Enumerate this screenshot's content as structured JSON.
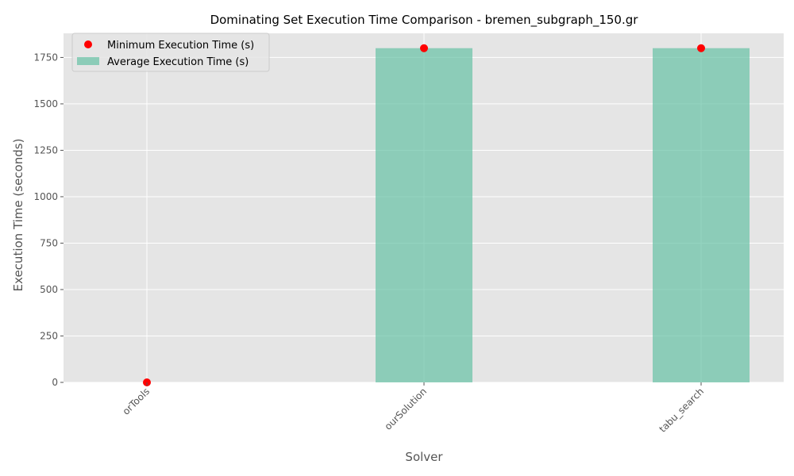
{
  "chart_data": {
    "type": "bar",
    "title": "Dominating Set Execution Time Comparison - bremen_subgraph_150.gr",
    "xlabel": "Solver",
    "ylabel": "Execution Time (seconds)",
    "categories": [
      "orTools",
      "ourSolution",
      "tabu_search"
    ],
    "ylim": [
      0,
      1880
    ],
    "yticks": [
      0,
      250,
      500,
      750,
      1000,
      1250,
      1500,
      1750
    ],
    "yticklabels": [
      "0",
      "250",
      "500",
      "750",
      "1000",
      "1250",
      "1500",
      "1750"
    ],
    "grid": true,
    "legend_position": "top-left",
    "series": [
      {
        "name": "Average Execution Time (s)",
        "kind": "bar",
        "color": "#66c2a5",
        "values": [
          0,
          1800,
          1800
        ]
      },
      {
        "name": "Minimum Execution Time (s)",
        "kind": "scatter",
        "color": "#ff0000",
        "values": [
          0,
          1800,
          1800
        ]
      }
    ],
    "legend": [
      {
        "label": "Minimum Execution Time (s)",
        "marker": "dot",
        "color": "#ff0000"
      },
      {
        "label": "Average Execution Time (s)",
        "marker": "patch",
        "color": "#66c2a5"
      }
    ],
    "plot_background": "#e5e5e5",
    "grid_color": "#ffffff"
  }
}
